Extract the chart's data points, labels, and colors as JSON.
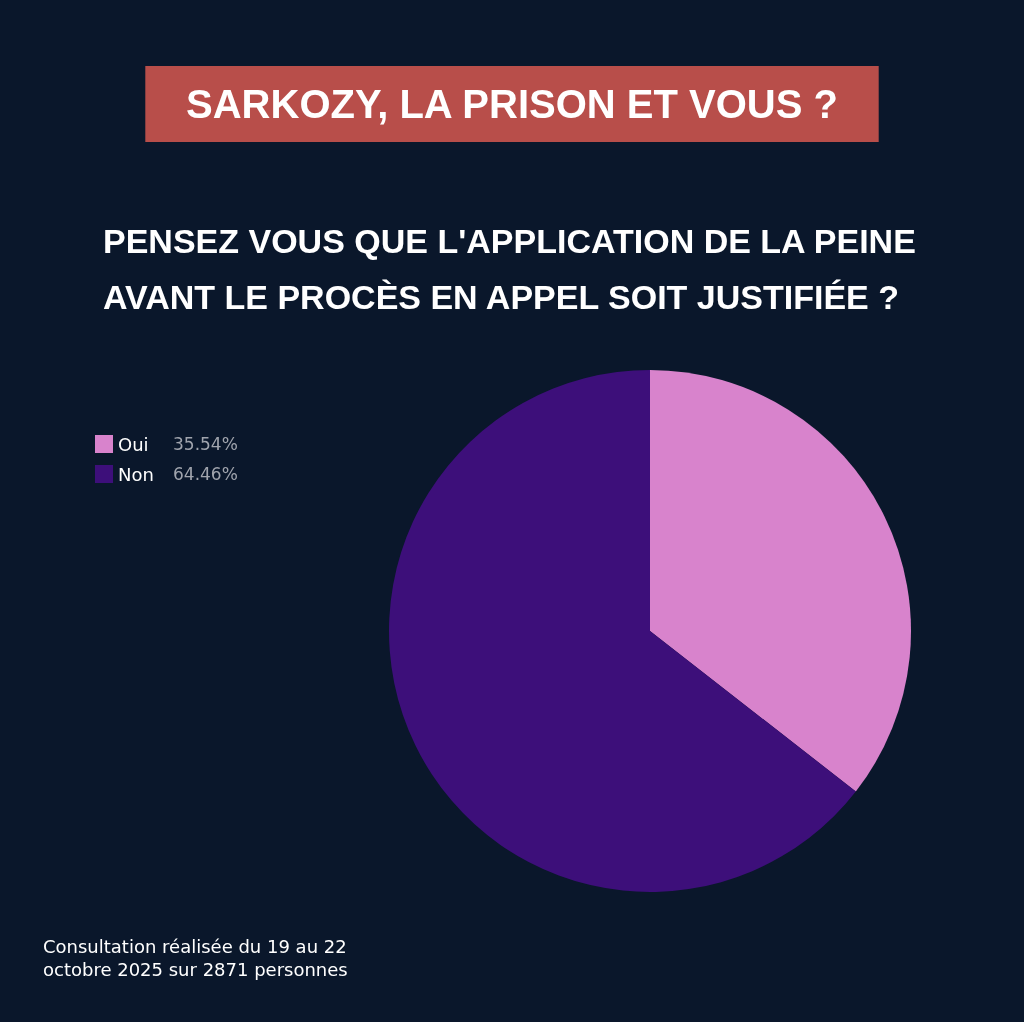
{
  "chart_data": {
    "type": "pie",
    "title": "SARKOZY, LA PRISON ET VOUS ?",
    "subtitle": "PENSEZ VOUS QUE L'APPLICATION DE LA PEINE\nAVANT LE PROCÈS EN APPEL SOIT JUSTIFIÉE ?",
    "categories": [
      "Oui",
      "Non"
    ],
    "values": [
      35.54,
      64.46
    ],
    "value_labels": [
      "35.54%",
      "64.46%"
    ],
    "colors": [
      "#d883cc",
      "#3d0f7a"
    ],
    "legend": "top left",
    "annotations": [
      "Consultation réalisée du 19 au 22\noctobre 2025 sur 2871 personnes"
    ]
  }
}
